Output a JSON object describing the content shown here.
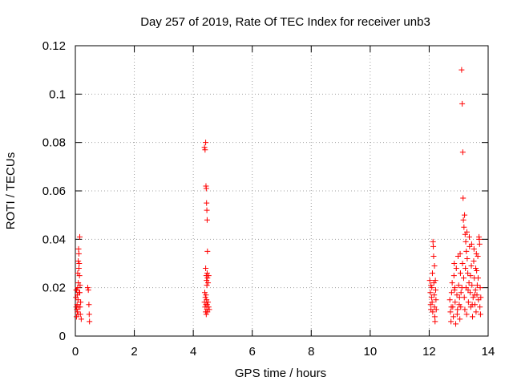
{
  "chart_data": {
    "type": "scatter",
    "title": "Day 257 of 2019, Rate Of TEC Index for receiver unb3",
    "xlabel": "GPS time / hours",
    "ylabel": "ROTI / TECUs",
    "xlim": [
      0,
      14
    ],
    "ylim": [
      0,
      0.12
    ],
    "xticks": [
      0,
      2,
      4,
      6,
      8,
      10,
      12,
      14
    ],
    "yticks": [
      0,
      0.02,
      0.04,
      0.06,
      0.08,
      0.1,
      0.12
    ],
    "ytick_labels": [
      "0",
      "0.02",
      "0.04",
      "0.06",
      "0.08",
      "0.1",
      "0.12"
    ],
    "xtick_labels": [
      "0",
      "2",
      "4",
      "6",
      "8",
      "10",
      "12",
      "14"
    ],
    "grid": true,
    "marker": "+",
    "color": "#ff0000",
    "points": [
      [
        0.02,
        0.016
      ],
      [
        0.03,
        0.012
      ],
      [
        0.04,
        0.008
      ],
      [
        0.05,
        0.019
      ],
      [
        0.06,
        0.013
      ],
      [
        0.07,
        0.01
      ],
      [
        0.08,
        0.02
      ],
      [
        0.09,
        0.015
      ],
      [
        0.1,
        0.022
      ],
      [
        0.11,
        0.036
      ],
      [
        0.12,
        0.034
      ],
      [
        0.12,
        0.028
      ],
      [
        0.13,
        0.03
      ],
      [
        0.14,
        0.025
      ],
      [
        0.15,
        0.041
      ],
      [
        0.15,
        0.018
      ],
      [
        0.16,
        0.012
      ],
      [
        0.17,
        0.009
      ],
      [
        0.18,
        0.014
      ],
      [
        0.2,
        0.007
      ],
      [
        0.05,
        0.011
      ],
      [
        0.07,
        0.017
      ],
      [
        0.09,
        0.009
      ],
      [
        0.11,
        0.012
      ],
      [
        0.13,
        0.018
      ],
      [
        0.16,
        0.021
      ],
      [
        0.03,
        0.019
      ],
      [
        0.08,
        0.026
      ],
      [
        0.1,
        0.031
      ],
      [
        0.42,
        0.02
      ],
      [
        0.44,
        0.019
      ],
      [
        0.46,
        0.013
      ],
      [
        0.47,
        0.009
      ],
      [
        0.48,
        0.006
      ],
      [
        4.38,
        0.078
      ],
      [
        4.4,
        0.077
      ],
      [
        4.42,
        0.08
      ],
      [
        4.43,
        0.062
      ],
      [
        4.44,
        0.061
      ],
      [
        4.45,
        0.055
      ],
      [
        4.46,
        0.052
      ],
      [
        4.47,
        0.048
      ],
      [
        4.48,
        0.035
      ],
      [
        4.42,
        0.028
      ],
      [
        4.44,
        0.025
      ],
      [
        4.45,
        0.023
      ],
      [
        4.46,
        0.021
      ],
      [
        4.47,
        0.026
      ],
      [
        4.48,
        0.024
      ],
      [
        4.5,
        0.022
      ],
      [
        4.52,
        0.025
      ],
      [
        4.38,
        0.014
      ],
      [
        4.4,
        0.012
      ],
      [
        4.41,
        0.016
      ],
      [
        4.42,
        0.01
      ],
      [
        4.43,
        0.013
      ],
      [
        4.44,
        0.009
      ],
      [
        4.45,
        0.015
      ],
      [
        4.46,
        0.011
      ],
      [
        4.47,
        0.013
      ],
      [
        4.48,
        0.01
      ],
      [
        4.5,
        0.014
      ],
      [
        4.52,
        0.012
      ],
      [
        4.54,
        0.011
      ],
      [
        4.39,
        0.018
      ],
      [
        4.43,
        0.017
      ],
      [
        12.02,
        0.023
      ],
      [
        12.04,
        0.018
      ],
      [
        12.05,
        0.013
      ],
      [
        12.06,
        0.011
      ],
      [
        12.08,
        0.016
      ],
      [
        12.09,
        0.02
      ],
      [
        12.1,
        0.014
      ],
      [
        12.12,
        0.01
      ],
      [
        12.13,
        0.039
      ],
      [
        12.14,
        0.037
      ],
      [
        12.15,
        0.033
      ],
      [
        12.16,
        0.022
      ],
      [
        12.17,
        0.017
      ],
      [
        12.18,
        0.012
      ],
      [
        12.19,
        0.008
      ],
      [
        12.2,
        0.006
      ],
      [
        12.21,
        0.023
      ],
      [
        12.22,
        0.019
      ],
      [
        12.23,
        0.015
      ],
      [
        12.24,
        0.011
      ],
      [
        12.06,
        0.021
      ],
      [
        12.11,
        0.026
      ],
      [
        12.18,
        0.029
      ],
      [
        12.7,
        0.015
      ],
      [
        12.72,
        0.01
      ],
      [
        12.74,
        0.006
      ],
      [
        12.76,
        0.018
      ],
      [
        12.78,
        0.022
      ],
      [
        12.8,
        0.012
      ],
      [
        12.82,
        0.008
      ],
      [
        12.84,
        0.025
      ],
      [
        12.86,
        0.019
      ],
      [
        12.88,
        0.014
      ],
      [
        12.9,
        0.005
      ],
      [
        12.92,
        0.028
      ],
      [
        12.94,
        0.017
      ],
      [
        12.96,
        0.011
      ],
      [
        12.98,
        0.033
      ],
      [
        13.0,
        0.021
      ],
      [
        13.02,
        0.013
      ],
      [
        13.04,
        0.007
      ],
      [
        13.06,
        0.026
      ],
      [
        13.08,
        0.018
      ],
      [
        13.1,
        0.11
      ],
      [
        13.12,
        0.096
      ],
      [
        13.14,
        0.076
      ],
      [
        13.15,
        0.057
      ],
      [
        13.16,
        0.048
      ],
      [
        13.18,
        0.045
      ],
      [
        13.2,
        0.05
      ],
      [
        13.22,
        0.042
      ],
      [
        13.24,
        0.039
      ],
      [
        13.26,
        0.035
      ],
      [
        13.13,
        0.03
      ],
      [
        13.17,
        0.024
      ],
      [
        13.19,
        0.016
      ],
      [
        13.21,
        0.011
      ],
      [
        13.23,
        0.028
      ],
      [
        13.25,
        0.02
      ],
      [
        13.27,
        0.009
      ],
      [
        13.29,
        0.032
      ],
      [
        13.31,
        0.026
      ],
      [
        13.33,
        0.014
      ],
      [
        13.35,
        0.022
      ],
      [
        13.37,
        0.037
      ],
      [
        13.39,
        0.018
      ],
      [
        13.41,
        0.012
      ],
      [
        13.43,
        0.029
      ],
      [
        13.45,
        0.021
      ],
      [
        13.47,
        0.008
      ],
      [
        13.49,
        0.016
      ],
      [
        13.51,
        0.031
      ],
      [
        13.53,
        0.024
      ],
      [
        13.55,
        0.013
      ],
      [
        13.57,
        0.019
      ],
      [
        13.59,
        0.01
      ],
      [
        13.61,
        0.027
      ],
      [
        13.63,
        0.021
      ],
      [
        13.65,
        0.033
      ],
      [
        13.67,
        0.015
      ],
      [
        13.69,
        0.041
      ],
      [
        13.7,
        0.04
      ],
      [
        13.71,
        0.038
      ],
      [
        13.72,
        0.012
      ],
      [
        13.73,
        0.02
      ],
      [
        13.74,
        0.009
      ],
      [
        13.75,
        0.016
      ],
      [
        12.85,
        0.03
      ],
      [
        12.95,
        0.009
      ],
      [
        13.05,
        0.034
      ],
      [
        13.11,
        0.02
      ],
      [
        13.28,
        0.043
      ],
      [
        13.36,
        0.041
      ],
      [
        13.44,
        0.038
      ],
      [
        13.52,
        0.036
      ],
      [
        13.6,
        0.034
      ],
      [
        13.66,
        0.024
      ],
      [
        13.03,
        0.016
      ],
      [
        13.4,
        0.025
      ],
      [
        13.58,
        0.028
      ],
      [
        13.62,
        0.017
      ],
      [
        12.75,
        0.012
      ],
      [
        12.87,
        0.02
      ],
      [
        13.07,
        0.012
      ],
      [
        13.32,
        0.019
      ],
      [
        13.46,
        0.013
      ],
      [
        13.54,
        0.017
      ]
    ]
  }
}
